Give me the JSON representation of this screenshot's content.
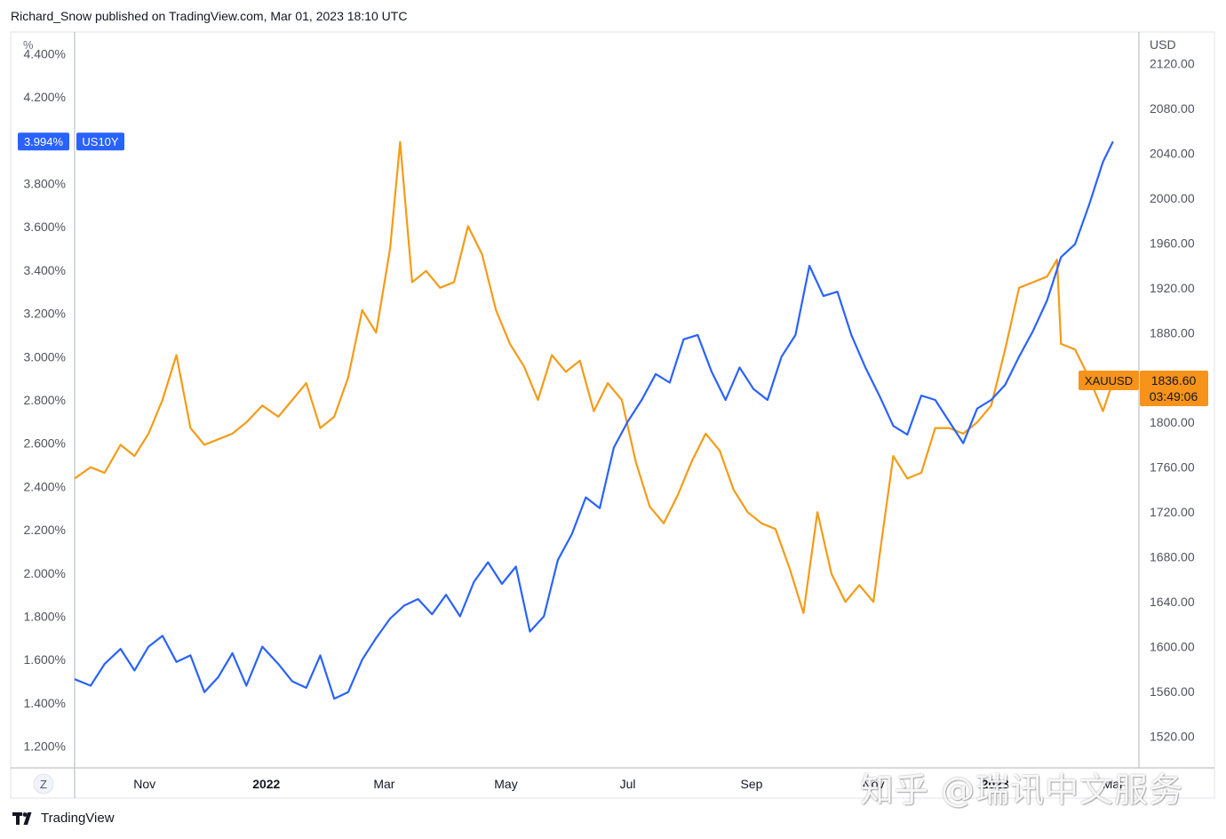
{
  "header": {
    "publish_line": "Richard_Snow published on TradingView.com, Mar 01, 2023 18:10 UTC"
  },
  "footer": {
    "brand": "TradingView"
  },
  "watermark": "知乎 @瑞讯中文服务",
  "colors": {
    "us10y": "#2962ff",
    "xauusd": "#f59b17",
    "us10y_label_bg": "#2962ff",
    "xauusd_label_bg": "#f7931a"
  },
  "chart_data": {
    "type": "line",
    "left_axis": {
      "unit_label": "%",
      "ticks": [
        "4.400%",
        "4.200%",
        "3.994%",
        "3.800%",
        "3.600%",
        "3.400%",
        "3.200%",
        "3.000%",
        "2.800%",
        "2.600%",
        "2.400%",
        "2.200%",
        "2.000%",
        "1.800%",
        "1.600%",
        "1.400%",
        "1.200%"
      ],
      "tick_values": [
        4.4,
        4.2,
        3.8,
        3.6,
        3.4,
        3.2,
        3.0,
        2.8,
        2.6,
        2.4,
        2.2,
        2.0,
        1.8,
        1.6,
        1.4,
        1.2
      ],
      "range": [
        1.1,
        4.5
      ]
    },
    "right_axis": {
      "unit_label": "USD",
      "ticks": [
        "2120.00",
        "2080.00",
        "2040.00",
        "2000.00",
        "1960.00",
        "1920.00",
        "1880.00",
        "1800.00",
        "1760.00",
        "1720.00",
        "1680.00",
        "1640.00",
        "1600.00",
        "1560.00",
        "1520.00"
      ],
      "tick_values": [
        2120,
        2080,
        2040,
        2000,
        1960,
        1920,
        1880,
        1800,
        1760,
        1720,
        1680,
        1640,
        1600,
        1560,
        1520
      ],
      "range": [
        1492,
        2148
      ]
    },
    "x_axis": {
      "ticks": [
        "Nov",
        "2022",
        "Mar",
        "May",
        "Jul",
        "Sep",
        "Nov",
        "2023",
        "Mar"
      ],
      "tick_dates": [
        "2021-11-01",
        "2022-01-01",
        "2022-03-01",
        "2022-05-01",
        "2022-07-01",
        "2022-09-01",
        "2022-11-01",
        "2023-01-01",
        "2023-03-01"
      ],
      "range": [
        "2021-09-27",
        "2023-03-14"
      ],
      "zoom_button": "Z"
    },
    "series": [
      {
        "name": "US10Y",
        "axis": "left",
        "last_value_label": "3.994%",
        "points": [
          [
            "2021-09-27",
            1.51
          ],
          [
            "2021-10-05",
            1.48
          ],
          [
            "2021-10-12",
            1.58
          ],
          [
            "2021-10-20",
            1.65
          ],
          [
            "2021-10-27",
            1.55
          ],
          [
            "2021-11-03",
            1.66
          ],
          [
            "2021-11-10",
            1.71
          ],
          [
            "2021-11-17",
            1.59
          ],
          [
            "2021-11-24",
            1.62
          ],
          [
            "2021-12-01",
            1.45
          ],
          [
            "2021-12-08",
            1.52
          ],
          [
            "2021-12-15",
            1.63
          ],
          [
            "2021-12-22",
            1.48
          ],
          [
            "2021-12-30",
            1.66
          ],
          [
            "2022-01-07",
            1.58
          ],
          [
            "2022-01-14",
            1.5
          ],
          [
            "2022-01-21",
            1.47
          ],
          [
            "2022-01-28",
            1.62
          ],
          [
            "2022-02-04",
            1.42
          ],
          [
            "2022-02-11",
            1.45
          ],
          [
            "2022-02-18",
            1.6
          ],
          [
            "2022-02-25",
            1.7
          ],
          [
            "2022-03-04",
            1.79
          ],
          [
            "2022-03-11",
            1.85
          ],
          [
            "2022-03-18",
            1.88
          ],
          [
            "2022-03-25",
            1.81
          ],
          [
            "2022-04-01",
            1.9
          ],
          [
            "2022-04-08",
            1.8
          ],
          [
            "2022-04-15",
            1.96
          ],
          [
            "2022-04-22",
            2.05
          ],
          [
            "2022-04-29",
            1.95
          ],
          [
            "2022-05-06",
            2.03
          ],
          [
            "2022-05-13",
            1.73
          ],
          [
            "2022-05-20",
            1.8
          ],
          [
            "2022-05-27",
            2.06
          ],
          [
            "2022-06-03",
            2.18
          ],
          [
            "2022-06-10",
            2.35
          ],
          [
            "2022-06-17",
            2.3
          ],
          [
            "2022-06-24",
            2.58
          ],
          [
            "2022-07-01",
            2.7
          ],
          [
            "2022-07-08",
            2.8
          ],
          [
            "2022-07-15",
            2.92
          ],
          [
            "2022-07-22",
            2.88
          ],
          [
            "2022-07-29",
            3.08
          ],
          [
            "2022-08-05",
            3.1
          ],
          [
            "2022-08-12",
            2.93
          ],
          [
            "2022-08-19",
            2.8
          ],
          [
            "2022-08-26",
            2.95
          ],
          [
            "2022-09-02",
            2.85
          ],
          [
            "2022-09-09",
            2.8
          ],
          [
            "2022-09-16",
            3.0
          ],
          [
            "2022-09-23",
            3.1
          ],
          [
            "2022-09-30",
            3.42
          ],
          [
            "2022-10-07",
            3.28
          ],
          [
            "2022-10-14",
            3.3
          ],
          [
            "2022-10-21",
            3.1
          ],
          [
            "2022-10-28",
            2.95
          ],
          [
            "2022-11-04",
            2.82
          ],
          [
            "2022-11-11",
            2.68
          ],
          [
            "2022-11-18",
            2.64
          ],
          [
            "2022-11-25",
            2.82
          ],
          [
            "2022-12-02",
            2.8
          ],
          [
            "2022-12-09",
            2.7
          ],
          [
            "2022-12-16",
            2.6
          ],
          [
            "2022-12-23",
            2.76
          ],
          [
            "2022-12-30",
            2.8
          ],
          [
            "2023-01-06",
            2.87
          ],
          [
            "2023-01-13",
            3.0
          ],
          [
            "2023-01-20",
            3.12
          ],
          [
            "2023-01-27",
            3.26
          ],
          [
            "2023-02-03",
            3.46
          ],
          [
            "2023-02-10",
            3.52
          ],
          [
            "2023-02-17",
            3.7
          ],
          [
            "2023-02-24",
            3.9
          ],
          [
            "2023-03-01",
            3.994
          ]
        ]
      },
      {
        "name": "XAUUSD",
        "axis": "right",
        "last_value_label": "1836.60",
        "countdown_label": "03:49:06",
        "points": [
          [
            "2021-09-27",
            1750
          ],
          [
            "2021-10-05",
            1760
          ],
          [
            "2021-10-12",
            1755
          ],
          [
            "2021-10-20",
            1780
          ],
          [
            "2021-10-27",
            1770
          ],
          [
            "2021-11-03",
            1790
          ],
          [
            "2021-11-10",
            1820
          ],
          [
            "2021-11-17",
            1860
          ],
          [
            "2021-11-24",
            1795
          ],
          [
            "2021-12-01",
            1780
          ],
          [
            "2021-12-08",
            1785
          ],
          [
            "2021-12-15",
            1790
          ],
          [
            "2021-12-22",
            1800
          ],
          [
            "2021-12-30",
            1815
          ],
          [
            "2022-01-07",
            1805
          ],
          [
            "2022-01-14",
            1820
          ],
          [
            "2022-01-21",
            1835
          ],
          [
            "2022-01-28",
            1795
          ],
          [
            "2022-02-04",
            1805
          ],
          [
            "2022-02-11",
            1840
          ],
          [
            "2022-02-18",
            1900
          ],
          [
            "2022-02-25",
            1880
          ],
          [
            "2022-03-04",
            1955
          ],
          [
            "2022-03-09",
            2050
          ],
          [
            "2022-03-15",
            1925
          ],
          [
            "2022-03-22",
            1935
          ],
          [
            "2022-03-29",
            1920
          ],
          [
            "2022-04-05",
            1925
          ],
          [
            "2022-04-12",
            1975
          ],
          [
            "2022-04-19",
            1950
          ],
          [
            "2022-04-26",
            1900
          ],
          [
            "2022-05-03",
            1870
          ],
          [
            "2022-05-10",
            1850
          ],
          [
            "2022-05-17",
            1820
          ],
          [
            "2022-05-24",
            1860
          ],
          [
            "2022-05-31",
            1845
          ],
          [
            "2022-06-07",
            1855
          ],
          [
            "2022-06-14",
            1810
          ],
          [
            "2022-06-21",
            1835
          ],
          [
            "2022-06-28",
            1820
          ],
          [
            "2022-07-05",
            1765
          ],
          [
            "2022-07-12",
            1725
          ],
          [
            "2022-07-19",
            1710
          ],
          [
            "2022-07-26",
            1735
          ],
          [
            "2022-08-02",
            1765
          ],
          [
            "2022-08-09",
            1790
          ],
          [
            "2022-08-16",
            1775
          ],
          [
            "2022-08-23",
            1740
          ],
          [
            "2022-08-30",
            1720
          ],
          [
            "2022-09-06",
            1710
          ],
          [
            "2022-09-13",
            1705
          ],
          [
            "2022-09-20",
            1670
          ],
          [
            "2022-09-27",
            1630
          ],
          [
            "2022-10-04",
            1720
          ],
          [
            "2022-10-11",
            1665
          ],
          [
            "2022-10-18",
            1640
          ],
          [
            "2022-10-25",
            1655
          ],
          [
            "2022-11-01",
            1640
          ],
          [
            "2022-11-04",
            1680
          ],
          [
            "2022-11-11",
            1770
          ],
          [
            "2022-11-18",
            1750
          ],
          [
            "2022-11-25",
            1755
          ],
          [
            "2022-12-02",
            1795
          ],
          [
            "2022-12-09",
            1795
          ],
          [
            "2022-12-16",
            1790
          ],
          [
            "2022-12-23",
            1800
          ],
          [
            "2022-12-30",
            1815
          ],
          [
            "2023-01-06",
            1865
          ],
          [
            "2023-01-13",
            1920
          ],
          [
            "2023-01-20",
            1925
          ],
          [
            "2023-01-27",
            1930
          ],
          [
            "2023-02-01",
            1945
          ],
          [
            "2023-02-03",
            1870
          ],
          [
            "2023-02-10",
            1865
          ],
          [
            "2023-02-17",
            1840
          ],
          [
            "2023-02-24",
            1810
          ],
          [
            "2023-03-01",
            1836.6
          ]
        ]
      }
    ],
    "grid": false,
    "legend": "none"
  }
}
